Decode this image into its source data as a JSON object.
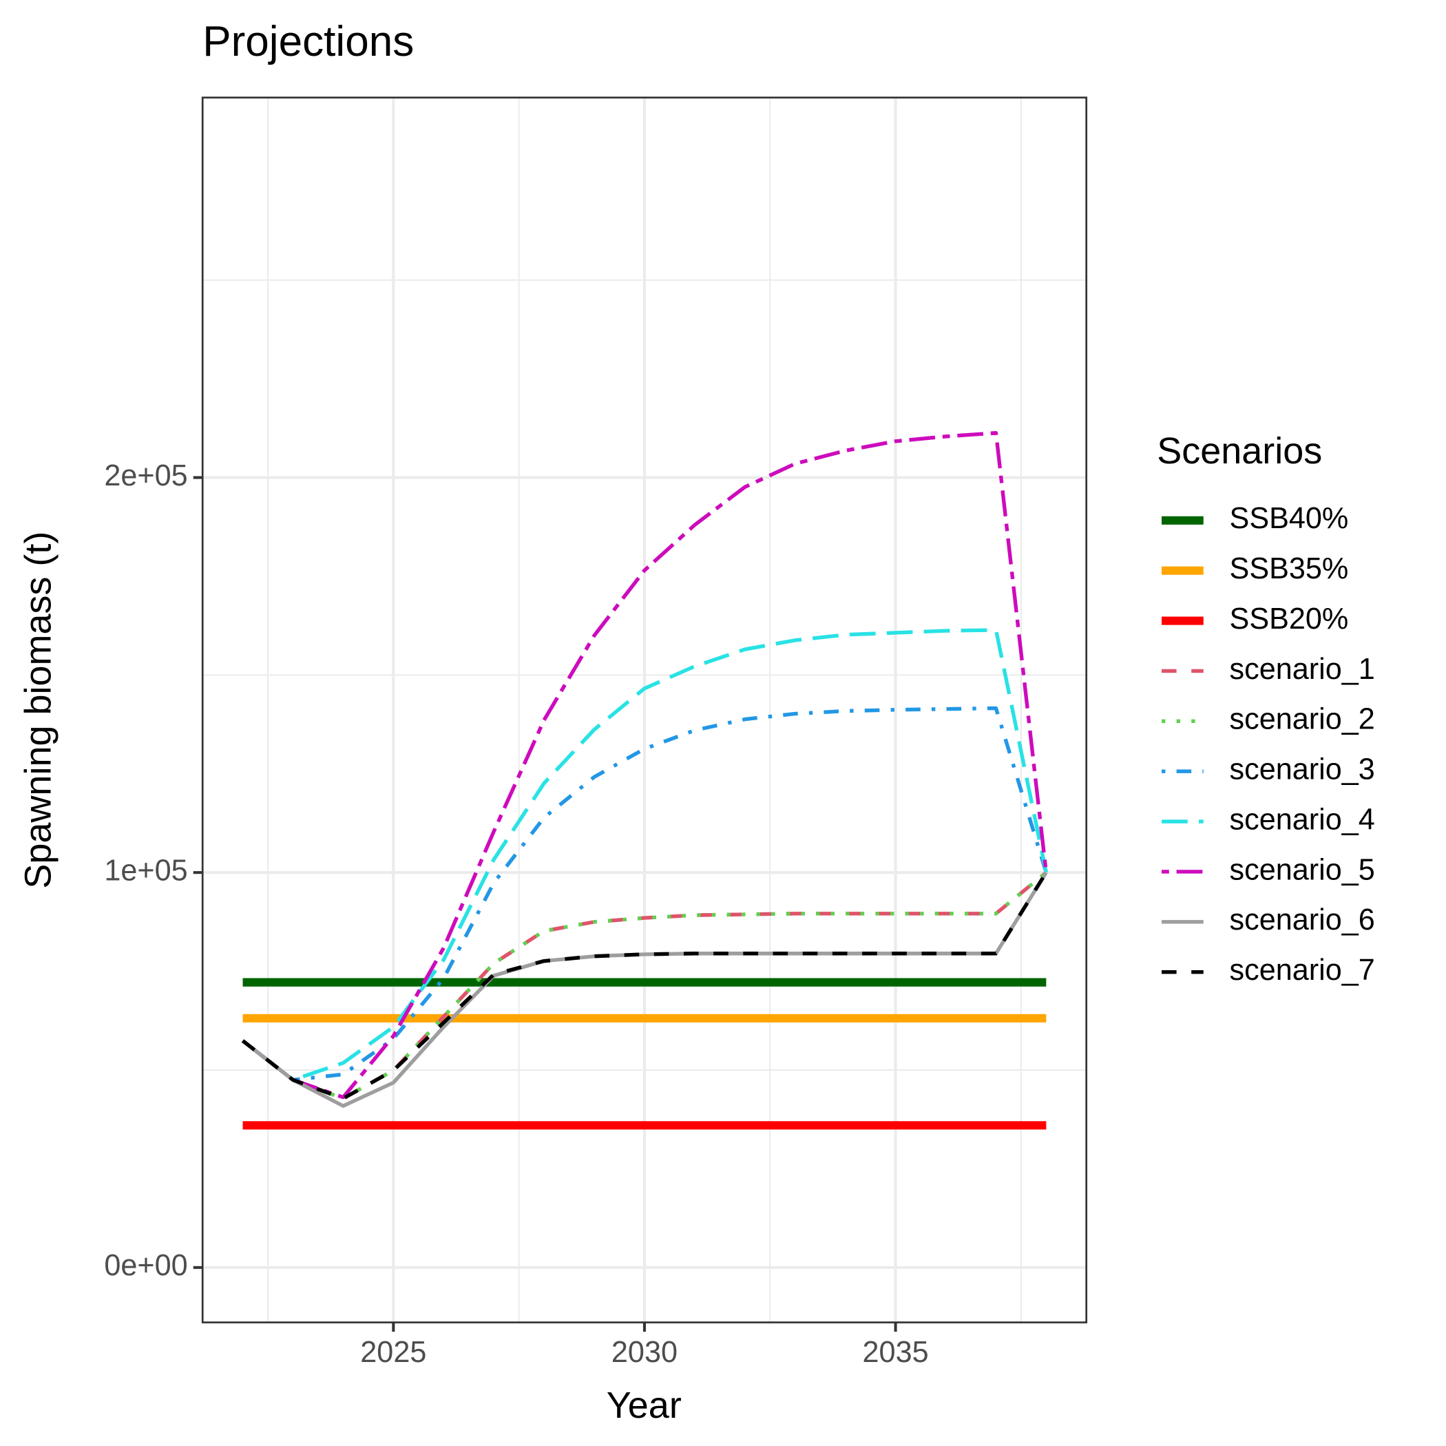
{
  "chart_data": {
    "type": "line",
    "title": "Projections",
    "x_label": "Year",
    "y_label": "Spawning biomass (t)",
    "legend_title": "Scenarios",
    "x": [
      2022,
      2023,
      2024,
      2025,
      2026,
      2027,
      2028,
      2029,
      2030,
      2031,
      2032,
      2033,
      2034,
      2035,
      2036,
      2037,
      2038
    ],
    "xlim": [
      2021.2,
      2038.8
    ],
    "xticks": [
      2025,
      2030,
      2035
    ],
    "xminor": [
      2022.5,
      2027.5,
      2032.5,
      2037.5
    ],
    "ylim": [
      -13900,
      296200
    ],
    "yticks": [
      {
        "value": 0,
        "label": "0e+00"
      },
      {
        "value": 100000,
        "label": "1e+05"
      },
      {
        "value": 200000,
        "label": "2e+05"
      }
    ],
    "yminor": [
      50000,
      150000,
      250000
    ],
    "grid": true,
    "series": [
      {
        "name": "SSB40%",
        "color": "#006400",
        "linetype": "solid",
        "width": 9,
        "values": [
          72200,
          72200,
          72200,
          72200,
          72200,
          72200,
          72200,
          72200,
          72200,
          72200,
          72200,
          72200,
          72200,
          72200,
          72200,
          72200,
          72200
        ]
      },
      {
        "name": "SSB35%",
        "color": "#FFA500",
        "linetype": "solid",
        "width": 9,
        "values": [
          63100,
          63100,
          63100,
          63100,
          63100,
          63100,
          63100,
          63100,
          63100,
          63100,
          63100,
          63100,
          63100,
          63100,
          63100,
          63100,
          63100
        ]
      },
      {
        "name": "SSB20%",
        "color": "#FF0000",
        "linetype": "solid",
        "width": 9,
        "values": [
          36000,
          36000,
          36000,
          36000,
          36000,
          36000,
          36000,
          36000,
          36000,
          36000,
          36000,
          36000,
          36000,
          36000,
          36000,
          36000,
          36000
        ]
      },
      {
        "name": "scenario_1",
        "color": "#DF536B",
        "linetype": "dashed",
        "width": 4,
        "values": [
          57400,
          47500,
          42800,
          49900,
          63500,
          77000,
          85200,
          87500,
          88500,
          89200,
          89400,
          89600,
          89600,
          89600,
          89600,
          89600,
          100000
        ]
      },
      {
        "name": "scenario_2",
        "color": "#61D04F",
        "linetype": "dotted",
        "width": 4,
        "values": [
          57400,
          47500,
          42800,
          49900,
          63500,
          77000,
          85200,
          87500,
          88500,
          89200,
          89400,
          89600,
          89600,
          89600,
          89600,
          89600,
          100000
        ]
      },
      {
        "name": "scenario_3",
        "color": "#2297E6",
        "linetype": "dotdash",
        "width": 4,
        "values": [
          57400,
          47500,
          48900,
          57900,
          73200,
          97400,
          113900,
          124200,
          131300,
          136000,
          138800,
          140200,
          140900,
          141200,
          141400,
          141600,
          100000
        ]
      },
      {
        "name": "scenario_4",
        "color": "#28E2E5",
        "linetype": "longdash",
        "width": 4,
        "values": [
          57400,
          47500,
          51800,
          60900,
          77900,
          103300,
          122600,
          136200,
          146600,
          152200,
          156500,
          158800,
          160200,
          160700,
          161200,
          161400,
          100000
        ]
      },
      {
        "name": "scenario_5",
        "color": "#CD0BBC",
        "linetype": "twodash",
        "width": 4,
        "values": [
          57400,
          47500,
          43100,
          58600,
          80900,
          110400,
          138600,
          160000,
          176500,
          188000,
          197600,
          203500,
          206800,
          209200,
          210400,
          211300,
          100000
        ]
      },
      {
        "name": "scenario_6",
        "color": "#9E9E9E",
        "linetype": "solid",
        "width": 4,
        "values": [
          57400,
          47500,
          40900,
          46800,
          60900,
          73900,
          77600,
          78800,
          79300,
          79500,
          79500,
          79500,
          79500,
          79500,
          79500,
          79500,
          100000
        ]
      },
      {
        "name": "scenario_7",
        "color": "#000000",
        "linetype": "dashed",
        "width": 4,
        "values": [
          57400,
          47500,
          42800,
          49900,
          62000,
          74200,
          77600,
          78800,
          79300,
          79500,
          79500,
          79500,
          79500,
          79500,
          79500,
          79500,
          100000
        ]
      }
    ]
  }
}
